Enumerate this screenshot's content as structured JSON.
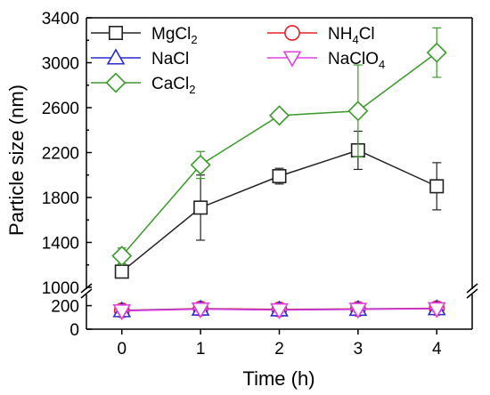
{
  "chart_data": {
    "type": "line",
    "xlabel": "Time (h)",
    "ylabel": "Particle size (nm)",
    "x": [
      0,
      1,
      2,
      3,
      4
    ],
    "x_ticks": [
      "0",
      "1",
      "2",
      "3",
      "4"
    ],
    "xlim": [
      -0.45,
      4.45
    ],
    "y_upper_ticks": [
      "1000",
      "1400",
      "1800",
      "2200",
      "2600",
      "3000",
      "3400"
    ],
    "y_lower_ticks": [
      "0",
      "200"
    ],
    "ylim_upper": [
      1000,
      3400
    ],
    "ylim_lower": [
      0,
      280
    ],
    "axis_break": [
      280,
      1000
    ],
    "grid": false,
    "legend_position": "top, inside plot",
    "series": [
      {
        "name": "MgCl",
        "name_subscript": "2",
        "marker": "square-icon",
        "color": "#222222",
        "values": [
          1140,
          1710,
          1990,
          2220,
          1900
        ],
        "errors": [
          null,
          290,
          70,
          170,
          210
        ]
      },
      {
        "name": "NH",
        "name_subscript": "4",
        "name_suffix": "Cl",
        "marker": "circle-icon",
        "color": "#e8202a",
        "values": [
          160,
          175,
          168,
          172,
          178
        ],
        "errors": [
          20,
          25,
          25,
          25,
          25
        ]
      },
      {
        "name": "NaCl",
        "marker": "triangle-up-icon",
        "color": "#2a2ad0",
        "values": [
          158,
          172,
          165,
          170,
          175
        ],
        "errors": [
          20,
          25,
          25,
          25,
          25
        ]
      },
      {
        "name": "NaClO",
        "name_subscript": "4",
        "marker": "triangle-down-icon",
        "color": "#e040e0",
        "values": [
          155,
          170,
          163,
          168,
          173
        ],
        "errors": [
          20,
          25,
          25,
          25,
          25
        ]
      },
      {
        "name": "CaCl",
        "name_subscript": "2",
        "marker": "diamond-icon",
        "color": "#3a9a2a",
        "values": [
          1280,
          2090,
          2530,
          2570,
          3090
        ],
        "errors": [
          70,
          120,
          null,
          410,
          220
        ]
      }
    ]
  }
}
